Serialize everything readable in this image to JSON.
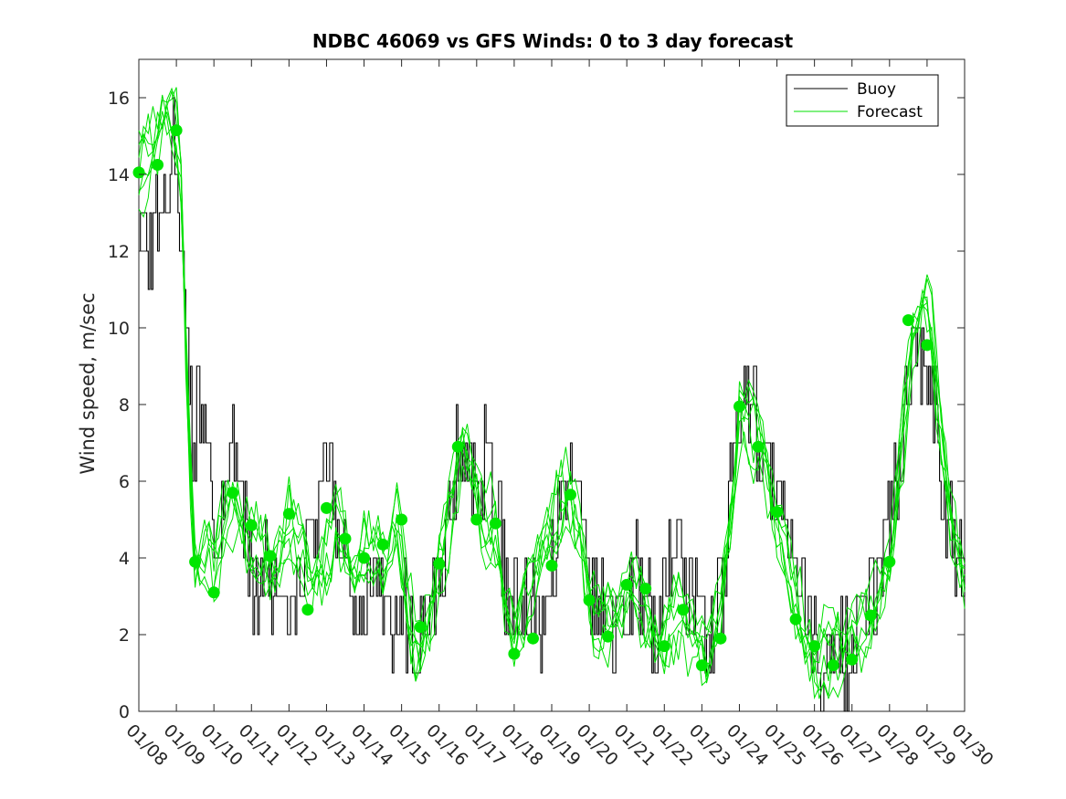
{
  "chart_data": {
    "type": "line",
    "title": "NDBC 46069 vs GFS Winds: 0 to 3 day forecast",
    "xlabel": "",
    "ylabel": "Wind speed, m/sec",
    "xlim": [
      8,
      30
    ],
    "ylim": [
      0,
      17
    ],
    "x_ticks": [
      8,
      9,
      10,
      11,
      12,
      13,
      14,
      15,
      16,
      17,
      18,
      19,
      20,
      21,
      22,
      23,
      24,
      25,
      26,
      27,
      28,
      29,
      30
    ],
    "x_tick_labels": [
      "01/08",
      "01/09",
      "01/10",
      "01/11",
      "01/12",
      "01/13",
      "01/14",
      "01/15",
      "01/16",
      "01/17",
      "01/18",
      "01/19",
      "01/20",
      "01/21",
      "01/22",
      "01/23",
      "01/24",
      "01/25",
      "01/26",
      "01/27",
      "01/28",
      "01/29",
      "01/30"
    ],
    "y_ticks": [
      0,
      2,
      4,
      6,
      8,
      10,
      12,
      14,
      16
    ],
    "y_tick_labels": [
      "0",
      "2",
      "4",
      "6",
      "8",
      "10",
      "12",
      "14",
      "16"
    ],
    "legend_position": "top-right",
    "legend": [
      {
        "label": "Buoy",
        "color": "#000000"
      },
      {
        "label": "Forecast",
        "color": "#00e000"
      }
    ],
    "colors": {
      "buoy": "#000000",
      "forecast": "#00e000",
      "marker": "#00e600"
    },
    "buoy_anchor": {
      "x": [
        8.0,
        8.3,
        8.5,
        8.8,
        9.0,
        9.2,
        9.4,
        9.6,
        9.8,
        10.0,
        10.3,
        10.5,
        10.7,
        10.9,
        11.1,
        11.3,
        11.5,
        11.8,
        12.0,
        12.3,
        12.5,
        12.8,
        13.0,
        13.2,
        13.4,
        13.6,
        13.8,
        14.0,
        14.3,
        14.5,
        14.7,
        15.0,
        15.2,
        15.4,
        15.6,
        15.8,
        16.0,
        16.2,
        16.5,
        16.8,
        17.0,
        17.2,
        17.5,
        17.8,
        18.0,
        18.2,
        18.4,
        18.6,
        18.8,
        19.0,
        19.2,
        19.5,
        19.8,
        20.0,
        20.2,
        20.5,
        20.8,
        21.0,
        21.2,
        21.5,
        21.8,
        22.0,
        22.3,
        22.6,
        22.9,
        23.1,
        23.3,
        23.6,
        23.8,
        24.0,
        24.2,
        24.5,
        24.8,
        25.0,
        25.2,
        25.4,
        25.6,
        25.8,
        26.0,
        26.2,
        26.4,
        26.6,
        26.8,
        27.0,
        27.2,
        27.4,
        27.6,
        27.8,
        28.0,
        28.2,
        28.4,
        28.6,
        28.8,
        29.0,
        29.2,
        29.5,
        29.8,
        30.0
      ],
      "y": [
        13.0,
        12.0,
        13.0,
        14.0,
        15.0,
        11.0,
        7.0,
        8.0,
        7.0,
        4.0,
        5.0,
        7.0,
        6.0,
        4.0,
        3.0,
        4.0,
        3.0,
        4.0,
        3.0,
        4.0,
        3.5,
        6.0,
        7.0,
        5.5,
        4.0,
        3.0,
        2.0,
        2.5,
        4.0,
        3.0,
        2.0,
        3.0,
        2.0,
        1.5,
        2.0,
        3.0,
        3.5,
        5.0,
        7.0,
        7.5,
        5.0,
        6.5,
        6.0,
        3.0,
        3.0,
        2.5,
        3.0,
        2.0,
        3.0,
        4.0,
        5.5,
        6.5,
        5.0,
        3.0,
        2.5,
        3.0,
        2.0,
        3.0,
        3.5,
        3.0,
        2.0,
        3.0,
        4.0,
        3.5,
        3.0,
        2.0,
        1.5,
        4.0,
        6.0,
        8.0,
        9.0,
        7.0,
        6.0,
        5.5,
        5.0,
        4.0,
        3.0,
        2.5,
        2.0,
        1.0,
        1.5,
        2.0,
        1.5,
        2.0,
        2.5,
        3.0,
        3.0,
        4.0,
        5.0,
        6.0,
        8.0,
        9.0,
        9.5,
        9.0,
        8.0,
        5.0,
        4.0,
        3.5
      ]
    },
    "forecast_anchor": {
      "x": [
        8.0,
        8.3,
        8.6,
        8.9,
        9.1,
        9.3,
        9.5,
        9.8,
        10.0,
        10.3,
        10.6,
        10.9,
        11.2,
        11.5,
        11.8,
        12.0,
        12.3,
        12.6,
        12.9,
        13.2,
        13.5,
        13.8,
        14.0,
        14.3,
        14.6,
        14.9,
        15.2,
        15.5,
        15.8,
        16.0,
        16.3,
        16.6,
        16.9,
        17.2,
        17.5,
        17.8,
        18.0,
        18.3,
        18.6,
        18.9,
        19.2,
        19.5,
        19.8,
        20.0,
        20.3,
        20.6,
        20.9,
        21.2,
        21.5,
        21.8,
        22.0,
        22.3,
        22.6,
        22.9,
        23.2,
        23.5,
        23.8,
        24.0,
        24.3,
        24.6,
        24.9,
        25.2,
        25.5,
        25.8,
        26.0,
        26.3,
        26.6,
        26.9,
        27.2,
        27.5,
        27.8,
        28.0,
        28.3,
        28.6,
        28.9,
        29.1,
        29.3,
        29.6,
        29.9,
        30.0
      ],
      "y": [
        14.0,
        14.3,
        15.2,
        15.5,
        15.0,
        8.0,
        4.0,
        4.5,
        3.5,
        5.0,
        5.2,
        4.3,
        4.5,
        4.0,
        4.3,
        5.0,
        4.0,
        2.8,
        3.5,
        5.0,
        4.8,
        3.5,
        4.5,
        4.0,
        3.5,
        4.8,
        2.5,
        1.8,
        3.0,
        3.8,
        5.0,
        6.5,
        6.2,
        5.0,
        5.0,
        3.0,
        2.0,
        2.5,
        3.5,
        4.2,
        5.5,
        5.8,
        4.5,
        3.0,
        2.2,
        2.0,
        2.5,
        3.2,
        2.8,
        2.2,
        2.0,
        2.5,
        2.0,
        1.5,
        1.5,
        3.0,
        5.5,
        7.8,
        7.5,
        6.5,
        5.0,
        4.0,
        3.0,
        2.2,
        1.5,
        1.6,
        1.3,
        1.5,
        2.0,
        2.6,
        3.5,
        4.0,
        6.5,
        9.5,
        10.5,
        10.0,
        8.0,
        5.5,
        4.0,
        3.8
      ]
    },
    "forecast_markers": {
      "x": [
        8.0,
        8.5,
        9.0,
        9.5,
        10.0,
        10.5,
        11.0,
        11.5,
        12.0,
        12.5,
        13.0,
        13.5,
        14.0,
        14.5,
        15.0,
        15.5,
        16.0,
        16.5,
        17.0,
        17.5,
        18.0,
        18.5,
        19.0,
        19.5,
        20.0,
        20.5,
        21.0,
        21.5,
        22.0,
        22.5,
        23.0,
        23.5,
        24.0,
        24.5,
        25.0,
        25.5,
        26.0,
        26.5,
        27.0,
        27.5,
        28.0,
        28.5,
        29.0
      ],
      "y": [
        14.05,
        14.25,
        15.15,
        3.9,
        3.1,
        5.7,
        4.85,
        4.05,
        5.15,
        2.65,
        5.3,
        4.5,
        4.0,
        4.35,
        5.0,
        2.2,
        3.85,
        6.9,
        5.0,
        4.9,
        1.5,
        1.9,
        3.8,
        5.65,
        2.9,
        1.95,
        3.3,
        3.2,
        1.7,
        2.65,
        1.2,
        1.9,
        7.95,
        6.9,
        5.2,
        2.4,
        1.7,
        1.2,
        1.35,
        2.5,
        3.9,
        10.2,
        9.55
      ]
    }
  }
}
